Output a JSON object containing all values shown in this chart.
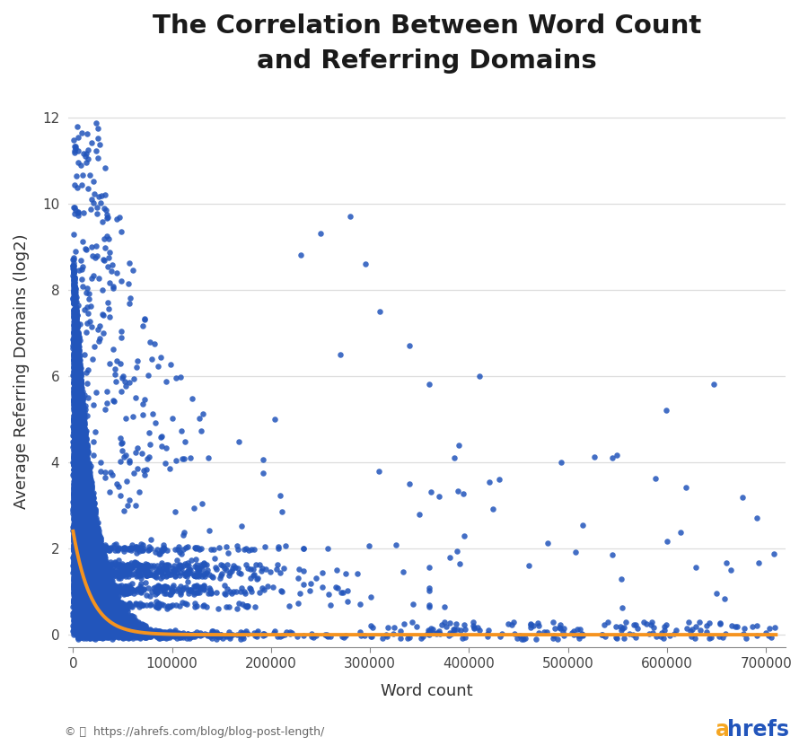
{
  "title": "The Correlation Between Word Count\nand Referring Domains",
  "xlabel": "Word count",
  "ylabel": "Average Referring Domains (log2)",
  "xlim": [
    -5000,
    720000
  ],
  "ylim": [
    -0.3,
    12.5
  ],
  "yticks": [
    0,
    2,
    4,
    6,
    8,
    10,
    12
  ],
  "xticks": [
    0,
    100000,
    200000,
    300000,
    400000,
    500000,
    600000,
    700000
  ],
  "xtick_labels": [
    "0",
    "100000",
    "200000",
    "300000",
    "400000",
    "500000",
    "600000",
    "700000"
  ],
  "scatter_color": "#2255BB",
  "curve_color": "#F5931F",
  "background_color": "#FFFFFF",
  "grid_color": "#DDDDDD",
  "title_fontsize": 21,
  "axis_label_fontsize": 13,
  "tick_fontsize": 11,
  "footer_text": "https://ahrefs.com/blog/blog-post-length/",
  "ahrefs_color_a": "#F5A623",
  "ahrefs_color_rest": "#2255BB",
  "seed": 42,
  "n_main": 5000,
  "n_quantized": 2000,
  "n_sparse": 200
}
